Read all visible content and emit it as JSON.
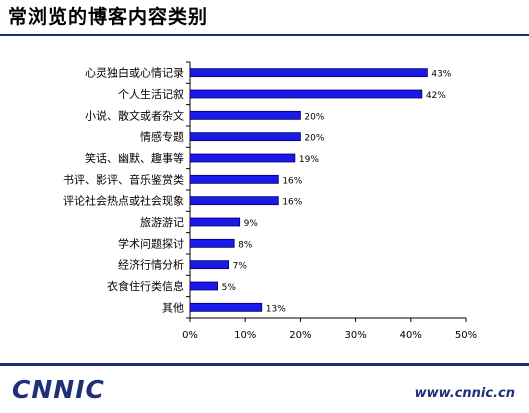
{
  "header": {
    "title": "常浏览的博客内容类别"
  },
  "footer": {
    "logo_text": "CNNIC",
    "url": "www.cnnic.cn"
  },
  "colors": {
    "bar_fill": "#1a1ae6",
    "bar_stroke": "#000066",
    "brand": "#1f2f7a"
  },
  "chart_data": {
    "type": "bar",
    "orientation": "horizontal",
    "title": "常浏览的博客内容类别",
    "categories": [
      "心灵独白或心情记录",
      "个人生活记叙",
      "小说、散文或者杂文",
      "情感专题",
      "笑话、幽默、趣事等",
      "书评、影评、音乐鉴赏类",
      "评论社会热点或社会现象",
      "旅游游记",
      "学术问题探讨",
      "经济行情分析",
      "衣食住行类信息",
      "其他"
    ],
    "values": [
      43,
      42,
      20,
      20,
      19,
      16,
      16,
      9,
      8,
      7,
      5,
      13
    ],
    "data_labels": [
      "43%",
      "42%",
      "20%",
      "20%",
      "19%",
      "16%",
      "16%",
      "9%",
      "8%",
      "7%",
      "5%",
      "13%"
    ],
    "xlim": [
      0,
      50
    ],
    "x_ticks": [
      0,
      10,
      20,
      30,
      40,
      50
    ],
    "x_tick_labels": [
      "0%",
      "10%",
      "20%",
      "30%",
      "40%",
      "50%"
    ],
    "grid": false,
    "legend": "none"
  }
}
